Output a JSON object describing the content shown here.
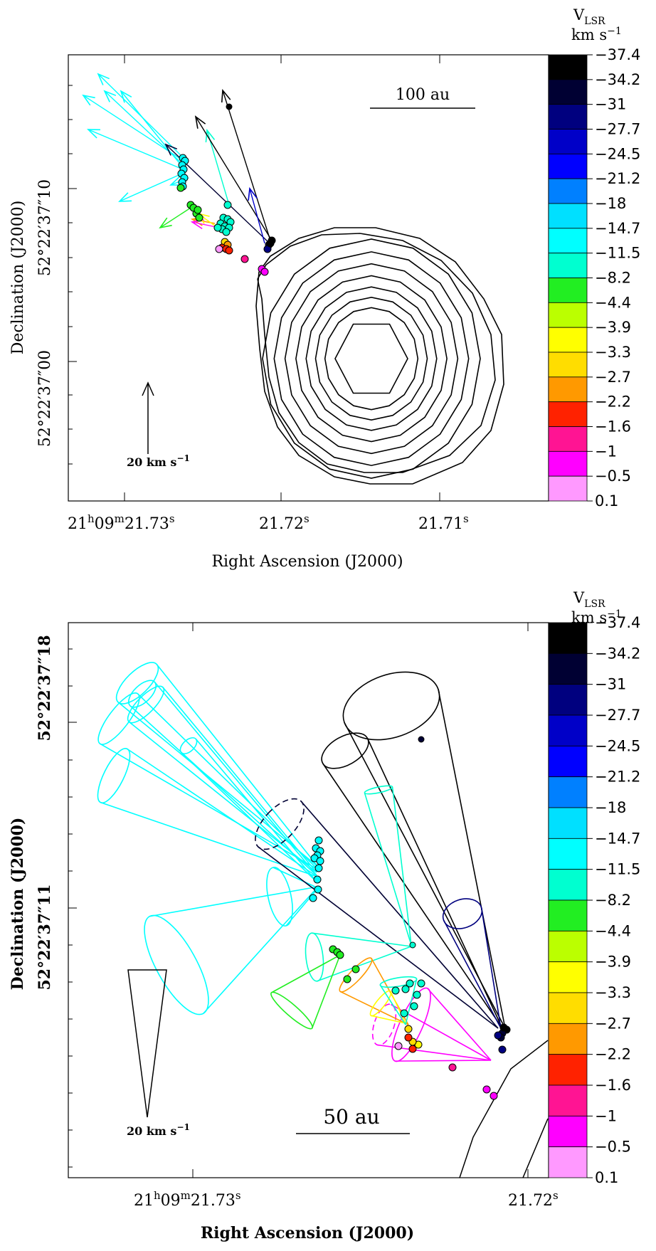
{
  "colorbar": {
    "title_main": "V",
    "title_sub": "LSR",
    "title_units": "km s",
    "title_exp": "−1",
    "values": [
      "-37.4",
      "-34.2",
      "-31",
      "-27.7",
      "-24.5",
      "-21.2",
      "-18",
      "-14.7",
      "-11.5",
      "-8.2",
      "-4.4",
      "-3.9",
      "-3.3",
      "-2.7",
      "-2.2",
      "-1.6",
      "-1",
      "-0.5",
      "0.1"
    ],
    "value_labels": [
      "−37.4",
      "−34.2",
      "−31",
      "−27.7",
      "−24.5",
      "−21.2",
      "−18",
      "−14.7",
      "−11.5",
      "−8.2",
      "−4.4",
      "−3.9",
      "−3.3",
      "−2.7",
      "−2.2",
      "−1.6",
      "−1",
      "−0.5",
      "0.1"
    ],
    "colors": [
      "#000000",
      "#000033",
      "#00007f",
      "#0000c8",
      "#0000ff",
      "#0080ff",
      "#00e0ff",
      "#00ffff",
      "#00ffd0",
      "#22ee22",
      "#bbff00",
      "#ffff00",
      "#ffdd00",
      "#ff9900",
      "#ff2200",
      "#ff1493",
      "#ff00ff",
      "#ff99ff"
    ]
  },
  "panel1": {
    "ylabel": "Declination (J2000)",
    "xlabel": "Right Ascension (J2000)",
    "y_ticks": [
      "52°22′37″10",
      "52°22′37″00"
    ],
    "x_ticks": [
      {
        "pre": "21",
        "sup1": "h",
        "mid": "09",
        "sup2": "m",
        "rest": "21.73",
        "sup3": "s"
      },
      {
        "pre": "",
        "sup1": "",
        "mid": "",
        "sup2": "",
        "rest": "21.72",
        "sup3": "s"
      },
      {
        "pre": "",
        "sup1": "",
        "mid": "",
        "sup2": "",
        "rest": "21.71",
        "sup3": "s"
      }
    ],
    "scalebar_label": "100   au",
    "velocity_label": "20 km s",
    "velocity_exp": "−1"
  },
  "panel2": {
    "ylabel": "Declination (J2000)",
    "xlabel": "Right Ascension (J2000)",
    "y_ticks": [
      "52°22′37″18",
      "52°22′37″11"
    ],
    "x_ticks": [
      {
        "pre": "21",
        "sup1": "h",
        "mid": "09",
        "sup2": "m",
        "rest": "21.73",
        "sup3": "s"
      },
      {
        "pre": "",
        "sup1": "",
        "mid": "",
        "sup2": "",
        "rest": "21.72",
        "sup3": "s"
      }
    ],
    "scalebar_label": "50   au",
    "velocity_label": "20 km s",
    "velocity_exp": "−1"
  },
  "chart_data": [
    {
      "type": "scatter",
      "xlabel": "Right Ascension (J2000)",
      "ylabel": "Declination (J2000)",
      "contours": "continuum contours (10 levels)",
      "scalebar": "100 au",
      "velocity_scale": "20 km s-1",
      "series": [
        {
          "name": "maser spots",
          "color_by": "V_LSR",
          "points": "proper motion vectors"
        }
      ]
    },
    {
      "type": "scatter",
      "xlabel": "Right Ascension (J2000)",
      "ylabel": "Declination (J2000)",
      "scalebar": "50 au",
      "velocity_scale": "20 km s-1",
      "series": [
        {
          "name": "maser spots",
          "color_by": "V_LSR",
          "points": "proper motion uncertainty cones"
        }
      ]
    }
  ]
}
